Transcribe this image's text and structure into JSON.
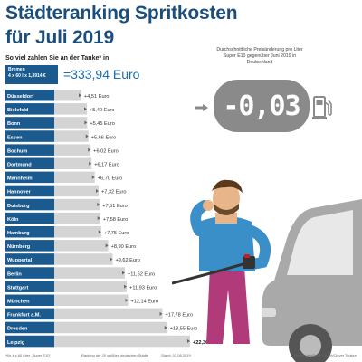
{
  "title_line1": "Städteranking Spritkosten",
  "title_line2": "für Juli 2019",
  "subtitle": "So viel zahlen Sie an der Tanke* in",
  "bremen": {
    "city": "Bremen",
    "formula": "4 x 60 l x 1,3914 €",
    "total": "=333,94 Euro"
  },
  "info": {
    "text": "Durchschnittliche Preisänderung pro Liter Super E10 gegenüber Juni 2019 in Deutschland",
    "display_value": "-0,03"
  },
  "colors": {
    "title": "#1a4f7d",
    "bar_dark": "#1a5a8f",
    "bar_light": "#d4d4d4",
    "accent": "#1a6fb0",
    "display_bg": "#8a8a8a"
  },
  "icons": [
    "arrow-right-icon",
    "fuel-pump-icon",
    "person-illustration",
    "car-illustration"
  ],
  "chart_data": {
    "type": "bar",
    "orientation": "horizontal",
    "categories": [
      "Düsseldorf",
      "Bielefeld",
      "Bonn",
      "Essen",
      "Bochum",
      "Dortmund",
      "Mannheim",
      "Hannover",
      "Duisburg",
      "Köln",
      "Hamburg",
      "Nürnberg",
      "Wuppertal",
      "Berlin",
      "Stuttgart",
      "München",
      "Frankfurt a.M.",
      "Dresden",
      "Leipzig"
    ],
    "values": [
      4.51,
      5.4,
      5.45,
      5.66,
      6.02,
      6.17,
      6.7,
      7.32,
      7.51,
      7.58,
      7.75,
      8.9,
      9.62,
      11.62,
      11.93,
      12.14,
      17.78,
      18.55,
      22.3
    ],
    "value_labels": [
      "+4,51 Euro",
      "+5,40 Euro",
      "+5,45 Euro",
      "+5,66 Euro",
      "+6,02 Euro",
      "+6,17 Euro",
      "+6,70 Euro",
      "+7,32 Euro",
      "+7,51 Euro",
      "+7,58 Euro",
      "+7,75 Euro",
      "+8,90 Euro",
      "+9,62 Euro",
      "+11,62 Euro",
      "+11,93 Euro",
      "+12,14 Euro",
      "+17,78 Euro",
      "+18,55 Euro",
      "+22,30 Euro"
    ],
    "xlim": [
      0,
      22.3
    ]
  },
  "footer": {
    "note": "*für 4 x 60 Liter „Super E10“",
    "ranking": "Ranking der 20 größten deutschen Städte",
    "date": "Stand: 01.08.2019",
    "source": "Quelle: infoRoad GmbH/Clever Tanken"
  }
}
